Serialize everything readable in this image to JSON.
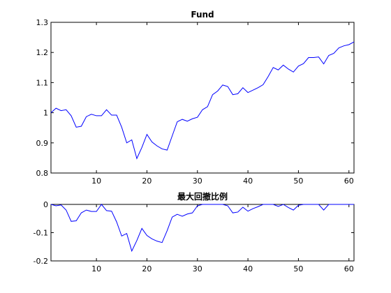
{
  "colors": {
    "line": "#0000ff",
    "axes": "#000000",
    "background": "#ffffff"
  },
  "chart_data": [
    {
      "type": "line",
      "title": "Fund",
      "xlabel": "",
      "ylabel": "",
      "xlim": [
        1,
        61
      ],
      "ylim": [
        0.8,
        1.3
      ],
      "xticks": [
        10,
        20,
        30,
        40,
        50,
        60
      ],
      "yticks": [
        0.8,
        0.9,
        1,
        1.1,
        1.2,
        1.3
      ],
      "ytick_labels": [
        "0.8",
        "0.9",
        "1",
        "1.1",
        "1.2",
        "1.3"
      ],
      "grid": false,
      "x": [
        1,
        2,
        3,
        4,
        5,
        6,
        7,
        8,
        9,
        10,
        11,
        12,
        13,
        14,
        15,
        16,
        17,
        18,
        19,
        20,
        21,
        22,
        23,
        24,
        25,
        26,
        27,
        28,
        29,
        30,
        31,
        32,
        33,
        34,
        35,
        36,
        37,
        38,
        39,
        40,
        41,
        42,
        43,
        44,
        45,
        46,
        47,
        48,
        49,
        50,
        51,
        52,
        53,
        54,
        55,
        56,
        57,
        58,
        59,
        60,
        61
      ],
      "series": [
        {
          "values": [
            1.0,
            1.015,
            1.007,
            1.01,
            0.99,
            0.952,
            0.955,
            0.987,
            0.995,
            0.99,
            0.99,
            1.01,
            0.992,
            0.992,
            0.952,
            0.9,
            0.91,
            0.848,
            0.885,
            0.928,
            0.903,
            0.89,
            0.88,
            0.876,
            0.923,
            0.97,
            0.978,
            0.972,
            0.98,
            0.985,
            1.01,
            1.02,
            1.06,
            1.072,
            1.092,
            1.087,
            1.06,
            1.063,
            1.083,
            1.067,
            1.075,
            1.083,
            1.093,
            1.12,
            1.15,
            1.142,
            1.158,
            1.145,
            1.135,
            1.155,
            1.163,
            1.183,
            1.183,
            1.185,
            1.162,
            1.19,
            1.197,
            1.215,
            1.222,
            1.226,
            1.235
          ]
        }
      ]
    },
    {
      "type": "line",
      "title": "最大回撤比例",
      "xlabel": "",
      "ylabel": "",
      "xlim": [
        1,
        61
      ],
      "ylim": [
        -0.2,
        0
      ],
      "xticks": [
        10,
        20,
        30,
        40,
        50,
        60
      ],
      "yticks": [
        -0.2,
        -0.1,
        0
      ],
      "ytick_labels": [
        "-0.2",
        "-0.1",
        "0"
      ],
      "grid": false,
      "x": [
        1,
        2,
        3,
        4,
        5,
        6,
        7,
        8,
        9,
        10,
        11,
        12,
        13,
        14,
        15,
        16,
        17,
        18,
        19,
        20,
        21,
        22,
        23,
        24,
        25,
        26,
        27,
        28,
        29,
        30,
        31,
        32,
        33,
        34,
        35,
        36,
        37,
        38,
        39,
        40,
        41,
        42,
        43,
        44,
        45,
        46,
        47,
        48,
        49,
        50,
        51,
        52,
        53,
        54,
        55,
        56,
        57,
        58,
        59,
        60,
        61
      ],
      "series": [
        {
          "values": [
            0,
            -0.005,
            -0.002,
            -0.02,
            -0.06,
            -0.058,
            -0.03,
            -0.02,
            -0.025,
            -0.025,
            0,
            -0.022,
            -0.024,
            -0.062,
            -0.112,
            -0.103,
            -0.165,
            -0.128,
            -0.085,
            -0.11,
            -0.122,
            -0.13,
            -0.135,
            -0.093,
            -0.045,
            -0.035,
            -0.042,
            -0.034,
            -0.03,
            -0.005,
            0,
            0,
            0,
            0,
            0,
            -0.005,
            -0.03,
            -0.027,
            -0.01,
            -0.024,
            -0.015,
            -0.008,
            0,
            0,
            0,
            -0.007,
            0,
            -0.011,
            -0.02,
            -0.003,
            0,
            0,
            0,
            0,
            -0.02,
            0,
            0,
            0,
            0,
            0,
            0
          ]
        }
      ]
    }
  ]
}
